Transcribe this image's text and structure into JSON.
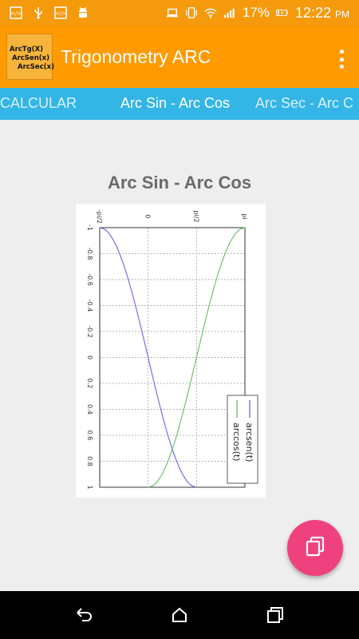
{
  "status_bar": {
    "battery": "17%",
    "time": "12:22",
    "ampm": "PM",
    "icons": [
      "code-icon",
      "usb-icon",
      "code-icon",
      "android-icon",
      "laptop-icon",
      "vibrate-icon",
      "wifi-icon",
      "signal-icon",
      "battery-charging-icon"
    ]
  },
  "app_bar": {
    "title": "Trigonometry ARC",
    "logo_lines": [
      "ArcTg(X)",
      "ArcSen(x)",
      "ArcSec(x)"
    ]
  },
  "tabs": [
    {
      "label": "CALCULAR",
      "active": false
    },
    {
      "label": "Arc Sin - Arc Cos",
      "active": true
    },
    {
      "label": "Arc Sec - Arc C",
      "active": false
    }
  ],
  "content": {
    "title": "Arc Sin - Arc Cos"
  },
  "chart_data": {
    "type": "line",
    "orientation": "rotated-90",
    "x": [
      -1,
      -0.8,
      -0.6,
      -0.4,
      -0.2,
      0,
      0.2,
      0.4,
      0.6,
      0.8,
      1
    ],
    "x_tick_labels": [
      "-1",
      "-0.8",
      "-0.6",
      "-0.4",
      "-0.2",
      "0",
      "0.2",
      "0.4",
      "0.6",
      "0.8",
      "1"
    ],
    "y_tick_labels": [
      "-pi/2",
      "0",
      "pi/2",
      "pi"
    ],
    "ylim": [
      -1.5708,
      3.1416
    ],
    "grid": true,
    "legend_placement": "bottom-right",
    "series": [
      {
        "name": "arcsen(t)",
        "color": "#6f6ff0",
        "values": [
          -1.5708,
          -0.9273,
          -0.6435,
          -0.4115,
          -0.2014,
          0,
          0.2014,
          0.4115,
          0.6435,
          0.9273,
          1.5708
        ]
      },
      {
        "name": "arccos(t)",
        "color": "#72bf72",
        "values": [
          3.1416,
          2.4981,
          2.2143,
          1.9823,
          1.7722,
          1.5708,
          1.3694,
          1.1593,
          0.9273,
          0.6435,
          0
        ]
      }
    ]
  },
  "nav_bar": {
    "icons": [
      "back-icon",
      "home-icon",
      "recents-icon"
    ]
  },
  "fab": {
    "icon": "copy-icon",
    "color": "#f0417f"
  }
}
